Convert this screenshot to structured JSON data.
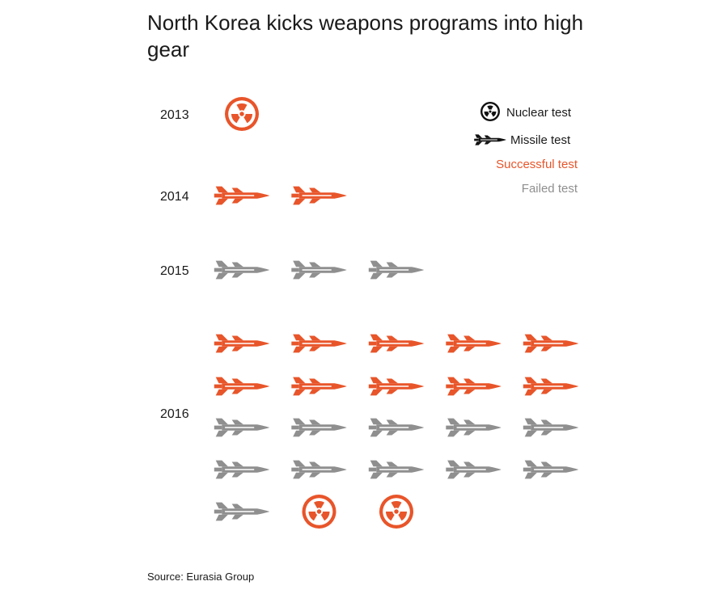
{
  "title": "North Korea kicks weapons programs into high gear",
  "source": "Source: Eurasia Group",
  "colors": {
    "successful": "#E8552A",
    "failed": "#8F8F8F",
    "legend_icon": "#111111"
  },
  "legend": {
    "nuclear": "Nuclear test",
    "missile": "Missile test",
    "successful": "Successful test",
    "failed": "Failed test"
  },
  "chart_data": {
    "type": "pictogram",
    "icon_types": {
      "nuclear": "radiation-icon",
      "missile": "missile-icon"
    },
    "years": [
      {
        "year": "2013",
        "tests": [
          {
            "type": "nuclear",
            "result": "successful"
          }
        ]
      },
      {
        "year": "2014",
        "tests": [
          {
            "type": "missile",
            "result": "successful"
          },
          {
            "type": "missile",
            "result": "successful"
          }
        ]
      },
      {
        "year": "2015",
        "tests": [
          {
            "type": "missile",
            "result": "failed"
          },
          {
            "type": "missile",
            "result": "failed"
          },
          {
            "type": "missile",
            "result": "failed"
          }
        ]
      },
      {
        "year": "2016",
        "tests": [
          {
            "type": "missile",
            "result": "successful"
          },
          {
            "type": "missile",
            "result": "successful"
          },
          {
            "type": "missile",
            "result": "successful"
          },
          {
            "type": "missile",
            "result": "successful"
          },
          {
            "type": "missile",
            "result": "successful"
          },
          {
            "type": "missile",
            "result": "successful"
          },
          {
            "type": "missile",
            "result": "successful"
          },
          {
            "type": "missile",
            "result": "successful"
          },
          {
            "type": "missile",
            "result": "successful"
          },
          {
            "type": "missile",
            "result": "successful"
          },
          {
            "type": "missile",
            "result": "failed"
          },
          {
            "type": "missile",
            "result": "failed"
          },
          {
            "type": "missile",
            "result": "failed"
          },
          {
            "type": "missile",
            "result": "failed"
          },
          {
            "type": "missile",
            "result": "failed"
          },
          {
            "type": "missile",
            "result": "failed"
          },
          {
            "type": "missile",
            "result": "failed"
          },
          {
            "type": "missile",
            "result": "failed"
          },
          {
            "type": "missile",
            "result": "failed"
          },
          {
            "type": "missile",
            "result": "failed"
          },
          {
            "type": "missile",
            "result": "failed"
          },
          {
            "type": "nuclear",
            "result": "successful"
          },
          {
            "type": "nuclear",
            "result": "successful"
          }
        ]
      }
    ],
    "totals": {
      "2013": 1,
      "2014": 2,
      "2015": 3,
      "2016": 23
    }
  }
}
